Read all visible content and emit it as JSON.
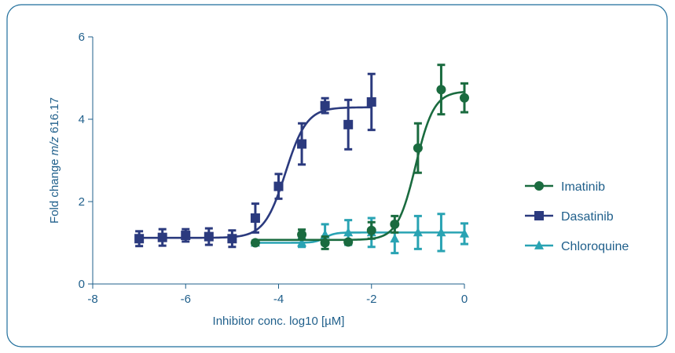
{
  "chart_data": {
    "type": "scatter",
    "xlabel": "Inhibitor conc. log10 [µM]",
    "ylabel": {
      "prefix": "Fold change ",
      "italic": "m/z",
      "suffix": " 616.17"
    },
    "xlim": [
      -8,
      0
    ],
    "ylim": [
      0,
      6
    ],
    "x_ticks": [
      -8,
      -6,
      -4,
      -2,
      0
    ],
    "y_ticks": [
      0,
      2,
      4,
      6
    ],
    "x_tick_labels": [
      "-8",
      "-6",
      "-4",
      "-2",
      "0"
    ],
    "y_tick_labels": [
      "0",
      "2",
      "4",
      "6"
    ],
    "grid": false,
    "legend_position": "right",
    "colors": {
      "frame": "#1f6e9c",
      "axis": "#1f5f8b"
    },
    "series": [
      {
        "name": "Imatinib",
        "color": "#1a6b3f",
        "marker": "circle",
        "fit": {
          "bottom": 1.07,
          "top": 4.68,
          "ec50": -1.05,
          "hill": 2.2,
          "x_range": [
            -4.5,
            0
          ]
        },
        "points": [
          {
            "x": -4.5,
            "y": 1.0,
            "err": 0.05
          },
          {
            "x": -3.5,
            "y": 1.2,
            "err": 0.12
          },
          {
            "x": -3.0,
            "y": 1.0,
            "err": 0.15
          },
          {
            "x": -2.5,
            "y": 1.02,
            "err": 0.05
          },
          {
            "x": -2.0,
            "y": 1.3,
            "err": 0.2
          },
          {
            "x": -1.5,
            "y": 1.45,
            "err": 0.2
          },
          {
            "x": -1.0,
            "y": 3.3,
            "err": 0.6
          },
          {
            "x": -0.5,
            "y": 4.72,
            "err": 0.6
          },
          {
            "x": 0.0,
            "y": 4.52,
            "err": 0.35
          }
        ]
      },
      {
        "name": "Dasatinib",
        "color": "#2b3a7e",
        "marker": "square",
        "fit": {
          "bottom": 1.12,
          "top": 4.29,
          "ec50": -3.85,
          "hill": 1.9,
          "x_range": [
            -7,
            -2
          ]
        },
        "points": [
          {
            "x": -7.0,
            "y": 1.1,
            "err": 0.18
          },
          {
            "x": -6.5,
            "y": 1.13,
            "err": 0.2
          },
          {
            "x": -6.0,
            "y": 1.18,
            "err": 0.15
          },
          {
            "x": -5.5,
            "y": 1.15,
            "err": 0.2
          },
          {
            "x": -5.0,
            "y": 1.1,
            "err": 0.2
          },
          {
            "x": -4.5,
            "y": 1.6,
            "err": 0.35
          },
          {
            "x": -4.0,
            "y": 2.37,
            "err": 0.3
          },
          {
            "x": -3.5,
            "y": 3.4,
            "err": 0.5
          },
          {
            "x": -3.0,
            "y": 4.33,
            "err": 0.18
          },
          {
            "x": -2.5,
            "y": 3.87,
            "err": 0.6
          },
          {
            "x": -2.0,
            "y": 4.42,
            "err": 0.68
          }
        ]
      },
      {
        "name": "Chloroquine",
        "color": "#29a3b3",
        "marker": "triangle",
        "fit": {
          "bottom": 1.0,
          "top": 1.25,
          "ec50": -3.0,
          "hill": 4.0,
          "x_range": [
            -4.5,
            0
          ]
        },
        "points": [
          {
            "x": -4.5,
            "y": 1.0,
            "err": 0.05
          },
          {
            "x": -3.5,
            "y": 1.0,
            "err": 0.1
          },
          {
            "x": -3.0,
            "y": 1.2,
            "err": 0.25
          },
          {
            "x": -2.5,
            "y": 1.25,
            "err": 0.3
          },
          {
            "x": -2.0,
            "y": 1.25,
            "err": 0.35
          },
          {
            "x": -1.5,
            "y": 1.1,
            "err": 0.35
          },
          {
            "x": -1.0,
            "y": 1.25,
            "err": 0.4
          },
          {
            "x": -0.5,
            "y": 1.25,
            "err": 0.45
          },
          {
            "x": 0.0,
            "y": 1.22,
            "err": 0.25
          }
        ]
      }
    ]
  }
}
